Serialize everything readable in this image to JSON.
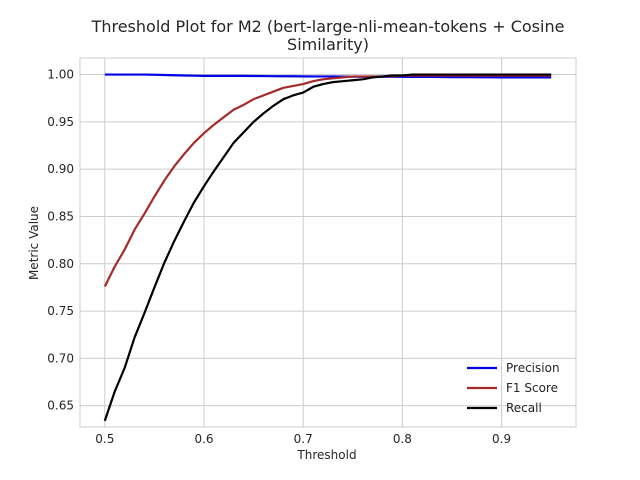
{
  "chart_data": {
    "type": "line",
    "title_lines": [
      "Threshold Plot for M2 (bert-large-nli-mean-tokens + Cosine",
      "Similarity)"
    ],
    "xlabel": "Threshold",
    "ylabel": "Metric Value",
    "xlim": [
      0.475,
      0.975
    ],
    "ylim": [
      0.6275,
      1.0175
    ],
    "x_ticks": [
      0.5,
      0.6,
      0.7,
      0.8,
      0.9
    ],
    "x_tick_labels": [
      "0.5",
      "0.6",
      "0.7",
      "0.8",
      "0.9"
    ],
    "y_ticks": [
      0.65,
      0.7,
      0.75,
      0.8,
      0.85,
      0.9,
      0.95,
      1.0
    ],
    "y_tick_labels": [
      "0.65",
      "0.70",
      "0.75",
      "0.80",
      "0.85",
      "0.90",
      "0.95",
      "1.00"
    ],
    "grid": true,
    "legend_position": "lower-right",
    "x": [
      0.5,
      0.51,
      0.52,
      0.53,
      0.54,
      0.55,
      0.56,
      0.57,
      0.58,
      0.59,
      0.6,
      0.61,
      0.62,
      0.63,
      0.64,
      0.65,
      0.66,
      0.67,
      0.68,
      0.69,
      0.7,
      0.71,
      0.72,
      0.73,
      0.74,
      0.75,
      0.76,
      0.77,
      0.78,
      0.79,
      0.8,
      0.81,
      0.82,
      0.83,
      0.84,
      0.85,
      0.86,
      0.87,
      0.88,
      0.89,
      0.9,
      0.91,
      0.92,
      0.93,
      0.94,
      0.95
    ],
    "series": [
      {
        "name": "Precision",
        "color": "#0000e6",
        "values": [
          1.0,
          1.0,
          1.0,
          1.0,
          1.0,
          0.9998,
          0.9995,
          0.9993,
          0.999,
          0.9988,
          0.9986,
          0.9986,
          0.9986,
          0.9986,
          0.9986,
          0.9985,
          0.9984,
          0.9983,
          0.9982,
          0.9982,
          0.9981,
          0.998,
          0.998,
          0.998,
          0.9979,
          0.9978,
          0.9977,
          0.9977,
          0.9977,
          0.9976,
          0.9976,
          0.9975,
          0.9975,
          0.9975,
          0.9974,
          0.9973,
          0.9972,
          0.9972,
          0.9971,
          0.9971,
          0.997,
          0.997,
          0.997,
          0.997,
          0.997,
          0.997
        ]
      },
      {
        "name": "F1 Score",
        "color": "#a52a2a",
        "values": [
          0.776,
          0.797,
          0.815,
          0.836,
          0.853,
          0.871,
          0.888,
          0.903,
          0.916,
          0.928,
          0.938,
          0.947,
          0.955,
          0.963,
          0.968,
          0.974,
          0.978,
          0.982,
          0.986,
          0.988,
          0.99,
          0.993,
          0.995,
          0.996,
          0.997,
          0.998,
          0.998,
          0.998,
          0.998,
          0.998,
          0.999,
          0.999,
          0.999,
          0.999,
          0.999,
          0.999,
          0.999,
          0.999,
          0.999,
          0.999,
          0.999,
          0.999,
          0.999,
          0.999,
          0.999,
          0.999
        ]
      },
      {
        "name": "Recall",
        "color": "#000000",
        "values": [
          0.634,
          0.665,
          0.69,
          0.722,
          0.748,
          0.775,
          0.801,
          0.824,
          0.845,
          0.865,
          0.882,
          0.898,
          0.913,
          0.928,
          0.939,
          0.95,
          0.959,
          0.967,
          0.974,
          0.978,
          0.981,
          0.987,
          0.99,
          0.992,
          0.993,
          0.994,
          0.995,
          0.997,
          0.998,
          0.999,
          0.999,
          1.0,
          1.0,
          1.0,
          1.0,
          1.0,
          1.0,
          1.0,
          1.0,
          1.0,
          1.0,
          1.0,
          1.0,
          1.0,
          1.0,
          1.0
        ]
      }
    ]
  }
}
